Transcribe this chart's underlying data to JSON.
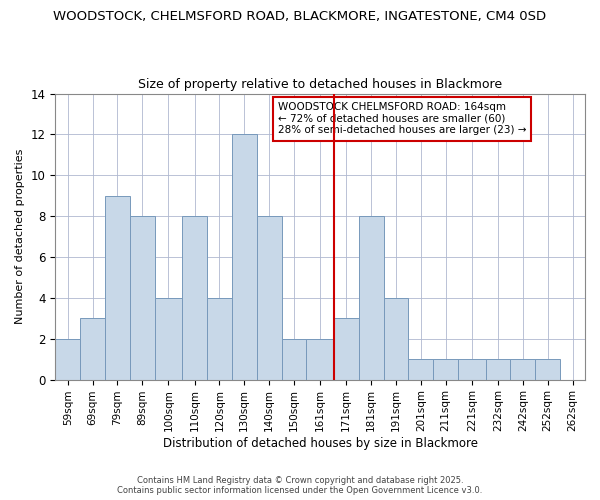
{
  "title": "WOODSTOCK, CHELMSFORD ROAD, BLACKMORE, INGATESTONE, CM4 0SD",
  "subtitle": "Size of property relative to detached houses in Blackmore",
  "xlabel": "Distribution of detached houses by size in Blackmore",
  "ylabel": "Number of detached properties",
  "bar_labels": [
    "59sqm",
    "69sqm",
    "79sqm",
    "89sqm",
    "100sqm",
    "110sqm",
    "120sqm",
    "130sqm",
    "140sqm",
    "150sqm",
    "161sqm",
    "171sqm",
    "181sqm",
    "191sqm",
    "201sqm",
    "211sqm",
    "221sqm",
    "232sqm",
    "242sqm",
    "252sqm",
    "262sqm"
  ],
  "bar_values": [
    2,
    3,
    9,
    8,
    4,
    8,
    4,
    12,
    8,
    2,
    2,
    3,
    8,
    4,
    1,
    1,
    1,
    1,
    1,
    1,
    0
  ],
  "bar_color": "#c8d8e8",
  "bar_edge_color": "#7799bb",
  "vline_x_idx": 10.5,
  "vline_color": "#cc0000",
  "annotation_line1": "WOODSTOCK CHELMSFORD ROAD: 164sqm",
  "annotation_line2": "← 72% of detached houses are smaller (60)",
  "annotation_line3": "28% of semi-detached houses are larger (23) →",
  "annotation_box_color": "#ffffff",
  "annotation_box_edge": "#cc0000",
  "ylim": [
    0,
    14
  ],
  "yticks": [
    0,
    2,
    4,
    6,
    8,
    10,
    12,
    14
  ],
  "grid_color": "#b0b8d0",
  "footer1": "Contains HM Land Registry data © Crown copyright and database right 2025.",
  "footer2": "Contains public sector information licensed under the Open Government Licence v3.0.",
  "bin_edges": [
    54,
    64,
    74,
    84,
    94,
    105,
    115,
    125,
    135,
    145,
    155,
    166,
    176,
    186,
    196,
    206,
    216,
    227,
    237,
    247,
    257,
    267
  ]
}
